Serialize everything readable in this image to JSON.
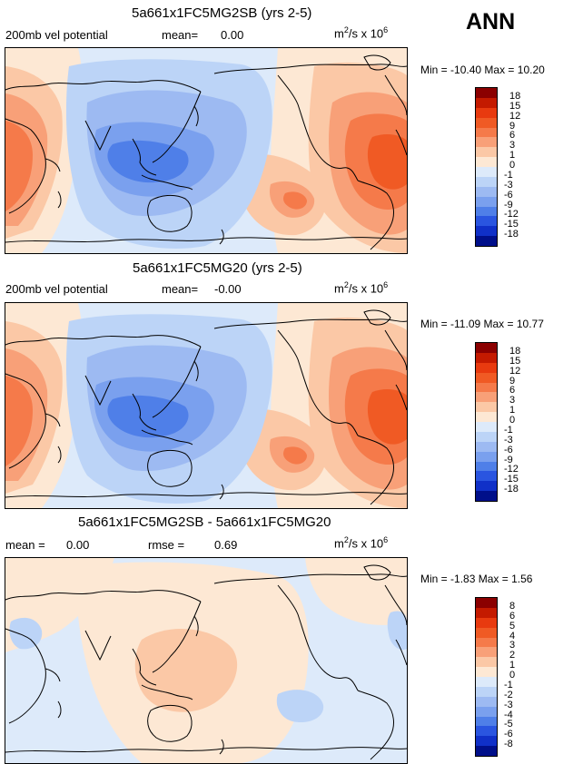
{
  "season": "ANN",
  "panels": [
    {
      "title": "5a661x1FC5MG2SB (yrs 2-5)",
      "left_label": "200mb vel potential",
      "mean_label": "mean=",
      "mean_value": "0.00",
      "units_base": "m",
      "units_exp": "2",
      "units_mid": "/s x 10",
      "units_pow": "6",
      "min_label": "Min =",
      "min_value": "-10.40",
      "max_label": "Max =",
      "max_value": "10.20"
    },
    {
      "title": "5a661x1FC5MG20 (yrs 2-5)",
      "left_label": "200mb vel potential",
      "mean_label": "mean=",
      "mean_value": "-0.00",
      "units_base": "m",
      "units_exp": "2",
      "units_mid": "/s x 10",
      "units_pow": "6",
      "min_label": "Min =",
      "min_value": "-11.09",
      "max_label": "Max =",
      "max_value": "10.77"
    },
    {
      "title": "5a661x1FC5MG2SB - 5a661x1FC5MG20",
      "left_label": "mean =",
      "mean_value": "0.00",
      "rmse_label": "rmse =",
      "rmse_value": "0.69",
      "units_base": "m",
      "units_exp": "2",
      "units_mid": "/s x 10",
      "units_pow": "6",
      "min_label": "Min =",
      "min_value": "-1.83",
      "max_label": "Max =",
      "max_value": "1.56"
    }
  ],
  "chart_data": [
    {
      "type": "heatmap",
      "title": "5a661x1FC5MG2SB (yrs 2-5)",
      "variable": "200mb vel potential",
      "units": "m2/s x 10^6",
      "mean": 0.0,
      "min": -10.4,
      "max": 10.2,
      "colorbar_levels": [
        "18",
        "15",
        "12",
        "9",
        "6",
        "3",
        "1",
        "0",
        "-1",
        "-3",
        "-6",
        "-9",
        "-12",
        "-15",
        "-18"
      ],
      "colors": [
        "#8b0000",
        "#c41a00",
        "#e83a0f",
        "#f05a24",
        "#f57a4a",
        "#f8a078",
        "#fbc8a6",
        "#fde8d4",
        "#ddeafa",
        "#bcd4f7",
        "#9dbaf2",
        "#7aa0ee",
        "#4f7fe8",
        "#2a55e0",
        "#1030c8",
        "#000f8a"
      ]
    },
    {
      "type": "heatmap",
      "title": "5a661x1FC5MG20 (yrs 2-5)",
      "variable": "200mb vel potential",
      "units": "m2/s x 10^6",
      "mean": -0.0,
      "min": -11.09,
      "max": 10.77,
      "colorbar_levels": [
        "18",
        "15",
        "12",
        "9",
        "6",
        "3",
        "1",
        "0",
        "-1",
        "-3",
        "-6",
        "-9",
        "-12",
        "-15",
        "-18"
      ],
      "colors": [
        "#8b0000",
        "#c41a00",
        "#e83a0f",
        "#f05a24",
        "#f57a4a",
        "#f8a078",
        "#fbc8a6",
        "#fde8d4",
        "#ddeafa",
        "#bcd4f7",
        "#9dbaf2",
        "#7aa0ee",
        "#4f7fe8",
        "#2a55e0",
        "#1030c8",
        "#000f8a"
      ]
    },
    {
      "type": "heatmap",
      "title": "5a661x1FC5MG2SB - 5a661x1FC5MG20",
      "units": "m2/s x 10^6",
      "mean": 0.0,
      "rmse": 0.69,
      "min": -1.83,
      "max": 1.56,
      "colorbar_levels": [
        "8",
        "6",
        "5",
        "4",
        "3",
        "2",
        "1",
        "0",
        "-1",
        "-2",
        "-3",
        "-4",
        "-5",
        "-6",
        "-8"
      ],
      "colors": [
        "#8b0000",
        "#c41a00",
        "#e83a0f",
        "#f05a24",
        "#f57a4a",
        "#f8a078",
        "#fbc8a6",
        "#fde8d4",
        "#ddeafa",
        "#bcd4f7",
        "#9dbaf2",
        "#7aa0ee",
        "#4f7fe8",
        "#2a55e0",
        "#1030c8",
        "#000f8a"
      ]
    }
  ]
}
